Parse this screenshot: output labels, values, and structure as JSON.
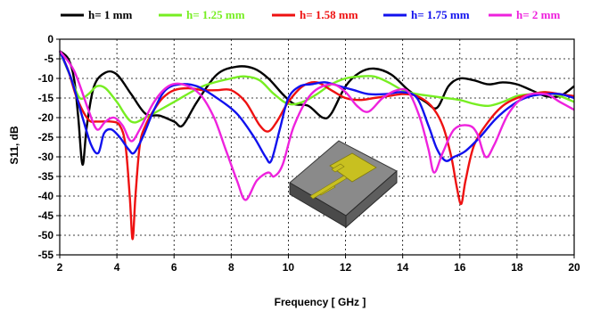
{
  "chart_data": {
    "type": "line",
    "title": "",
    "xlabel": "Frequency [ GHz ]",
    "ylabel": "S11, dB",
    "xlim": [
      2,
      20
    ],
    "ylim": [
      -55,
      0
    ],
    "xticks": [
      "2",
      "4",
      "6",
      "8",
      "10",
      "12",
      "14",
      "16",
      "18",
      "20"
    ],
    "yticks": [
      "0",
      "-5",
      "-10",
      "-15",
      "-20",
      "-25",
      "-30",
      "-35",
      "-40",
      "-45",
      "-50",
      "-55"
    ],
    "grid": true,
    "legend_position": "top",
    "series": [
      {
        "name": "h= 1 mm",
        "color": "#000000",
        "x": [
          2,
          2.3,
          2.5,
          2.65,
          2.8,
          2.95,
          3.2,
          3.6,
          4,
          4.5,
          5,
          5.5,
          6,
          6.3,
          6.8,
          7.5,
          8.2,
          8.8,
          9.3,
          9.8,
          10.2,
          10.7,
          11.2,
          11.5,
          12,
          12.5,
          13,
          13.6,
          14.2,
          14.8,
          15.2,
          15.6,
          16,
          16.5,
          17,
          17.5,
          18,
          18.5,
          19,
          19.5,
          20
        ],
        "y": [
          -3,
          -5,
          -10,
          -20,
          -32,
          -22,
          -12,
          -8.5,
          -9,
          -14,
          -19,
          -19.5,
          -21,
          -22,
          -16,
          -9,
          -7,
          -7.5,
          -10,
          -14,
          -16.5,
          -17,
          -20,
          -19,
          -12,
          -8.5,
          -7.5,
          -9,
          -13,
          -16,
          -17.5,
          -12,
          -10,
          -10.5,
          -11.5,
          -11,
          -11.5,
          -13,
          -14.5,
          -14.5,
          -12
        ]
      },
      {
        "name": "h= 1.25 mm",
        "color": "#77ee22",
        "x": [
          2,
          2.4,
          2.7,
          3,
          3.3,
          3.6,
          4,
          4.5,
          5,
          6,
          7,
          8,
          8.5,
          9,
          9.5,
          10,
          10.5,
          11,
          11.5,
          12,
          12.5,
          13,
          13.5,
          14,
          14.5,
          15,
          15.5,
          16,
          16.5,
          17,
          17.5,
          18,
          18.5,
          19,
          19.5,
          20
        ],
        "y": [
          -3,
          -10,
          -15,
          -14,
          -12,
          -12.5,
          -16,
          -21,
          -20,
          -16,
          -12,
          -10,
          -9.5,
          -10.5,
          -14,
          -16.5,
          -16,
          -14,
          -11.5,
          -10,
          -9.5,
          -9.5,
          -11,
          -13,
          -14,
          -14.5,
          -15,
          -15.5,
          -16.5,
          -17,
          -16,
          -14.5,
          -14,
          -13.5,
          -14.5,
          -16
        ]
      },
      {
        "name": "h= 1.58 mm",
        "color": "#ee1111",
        "x": [
          2,
          2.3,
          2.6,
          3,
          3.3,
          3.8,
          4.1,
          4.3,
          4.45,
          4.55,
          4.65,
          4.8,
          5,
          5.3,
          5.6,
          6,
          6.5,
          7,
          7.5,
          8,
          8.5,
          9,
          9.3,
          9.6,
          10,
          10.5,
          11,
          11.5,
          12,
          12.5,
          13,
          13.5,
          14,
          14.5,
          15,
          15.4,
          15.7,
          15.9,
          16.05,
          16.2,
          16.5,
          17,
          17.5,
          18,
          18.5,
          19,
          19.5,
          20
        ],
        "y": [
          -3,
          -8,
          -15,
          -20.5,
          -21,
          -21,
          -22,
          -27,
          -40,
          -51,
          -40,
          -27,
          -22,
          -18,
          -15,
          -13,
          -12.5,
          -13,
          -13,
          -13,
          -16,
          -22,
          -23.5,
          -21,
          -16,
          -12,
          -11,
          -13,
          -15,
          -15.5,
          -15,
          -14.5,
          -14,
          -14.5,
          -17,
          -22,
          -30,
          -38,
          -42,
          -36,
          -27,
          -21,
          -17,
          -15,
          -14,
          -13.5,
          -14,
          -14.5
        ]
      },
      {
        "name": "h= 1.75 mm",
        "color": "#1111ee",
        "x": [
          2,
          2.4,
          2.8,
          3.1,
          3.35,
          3.55,
          3.8,
          4.1,
          4.4,
          4.6,
          4.9,
          5.3,
          5.7,
          6.2,
          6.8,
          7.5,
          8.2,
          8.8,
          9.2,
          9.4,
          9.7,
          10,
          10.4,
          10.8,
          11.3,
          11.8,
          12.3,
          12.8,
          13.4,
          14,
          14.5,
          14.9,
          15.2,
          15.5,
          15.8,
          16.2,
          16.7,
          17.3,
          18,
          18.5,
          19,
          19.5,
          20
        ],
        "y": [
          -3,
          -10,
          -20,
          -27,
          -29,
          -24,
          -23,
          -25,
          -28,
          -29,
          -25,
          -18,
          -13,
          -11.5,
          -12,
          -15,
          -19,
          -25,
          -30,
          -31,
          -23,
          -15,
          -12,
          -11.5,
          -11,
          -12,
          -13,
          -14,
          -14,
          -13.5,
          -15,
          -22,
          -28,
          -31,
          -30,
          -28.5,
          -25,
          -20,
          -16,
          -14.5,
          -14,
          -14,
          -15
        ]
      },
      {
        "name": "h= 2 mm",
        "color": "#ee22dd",
        "x": [
          2,
          2.5,
          3,
          3.3,
          3.6,
          3.9,
          4.2,
          4.5,
          4.8,
          5.3,
          5.8,
          6.3,
          6.9,
          7.4,
          7.8,
          8.2,
          8.5,
          8.9,
          9.3,
          9.5,
          9.8,
          10.2,
          10.8,
          11.5,
          12,
          12.4,
          12.8,
          13.3,
          13.8,
          14.2,
          14.6,
          14.9,
          15.1,
          15.4,
          15.8,
          16.3,
          16.6,
          16.9,
          17.2,
          17.7,
          18.3,
          19,
          19.5,
          20
        ],
        "y": [
          -3,
          -8,
          -18,
          -23,
          -21,
          -20,
          -22,
          -26,
          -23,
          -16,
          -12,
          -11.5,
          -14,
          -20,
          -28,
          -36,
          -41,
          -36,
          -34,
          -35,
          -32,
          -22,
          -14,
          -11.5,
          -13.5,
          -17,
          -18.5,
          -15,
          -13,
          -13.5,
          -20,
          -28,
          -34,
          -29,
          -23,
          -22,
          -24,
          -30,
          -27,
          -19,
          -14.5,
          -14,
          -16,
          -18
        ]
      }
    ]
  },
  "inset": {
    "description_icon": "antenna-3d-icon"
  }
}
